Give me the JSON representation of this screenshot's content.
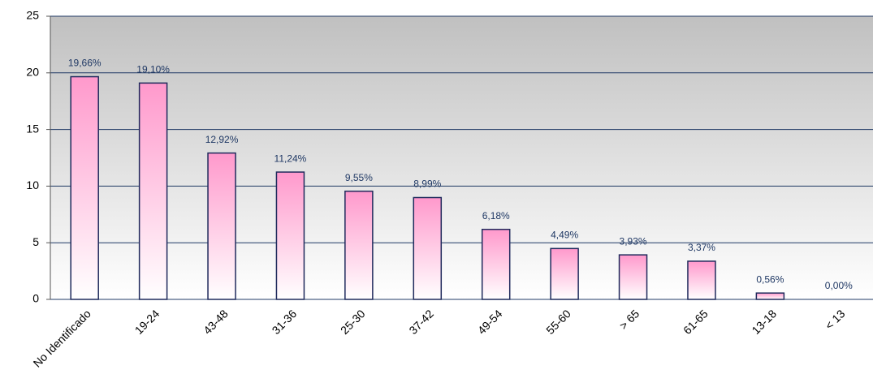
{
  "chart_data": {
    "type": "bar",
    "categories": [
      "No Identificado",
      "19-24",
      "43-48",
      "31-36",
      "25-30",
      "37-42",
      "49-54",
      "55-60",
      "> 65",
      "61-65",
      "13-18",
      "< 13"
    ],
    "values": [
      19.66,
      19.1,
      12.92,
      11.24,
      9.55,
      8.99,
      6.18,
      4.49,
      3.93,
      3.37,
      0.56,
      0
    ],
    "value_labels": [
      "19,66%",
      "19,10%",
      "12,92%",
      "11,24%",
      "9,55%",
      "8,99%",
      "6,18%",
      "4,49%",
      "3,93%",
      "3,37%",
      "0,56%",
      "0,00%"
    ],
    "color": "#ff99cc",
    "ylim": [
      0,
      25
    ],
    "yticks": [
      0,
      5,
      10,
      15,
      20,
      25
    ],
    "grid": true
  }
}
